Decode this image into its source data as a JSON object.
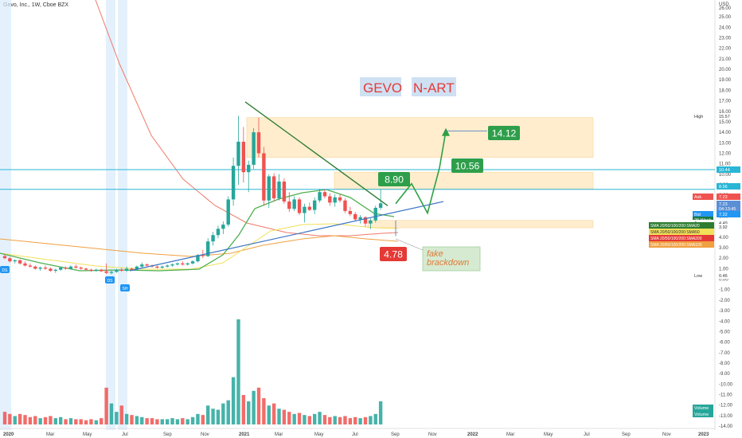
{
  "header": {
    "symbol": "Gevo, Inc., 1W, Cboe BZX"
  },
  "currency": "USD",
  "colors": {
    "up": "#26a69a",
    "down": "#ef5350",
    "trend_line": "#2f7d32",
    "support_line": "#3a74c4",
    "hline": "#29b6d6",
    "zone_fill": "#ffe0a6",
    "zone_stroke": "#f3b34a",
    "arrow": "#2ea043",
    "sma_red": "#ef7a6a",
    "sma_green": "#4caf50",
    "sma_yellow": "#f1e05a",
    "sma_orange": "#f0a040",
    "tag_green": "#2e9e4a",
    "tag_red": "#e53935",
    "title_bg": "#cfe0f3",
    "title_fg": "#e53935"
  },
  "title": {
    "ticker": "GEVO",
    "method": "N-ART"
  },
  "annotations": {
    "target_1": "14.12",
    "target_2": "10.56",
    "target_3": "8.90",
    "low_label": "4.78",
    "fake_note": "fake\nbrackdown"
  },
  "price_scale": {
    "ticks": [
      "25.00",
      "24.00",
      "23.00",
      "22.00",
      "21.00",
      "20.00",
      "19.00",
      "18.00",
      "17.00",
      "16.00",
      "15.00",
      "14.00",
      "13.00",
      "12.00",
      "11.00",
      "10.00",
      "9.00",
      "8.00",
      "7.00",
      "6.00",
      "5.00",
      "4.00",
      "3.00",
      "2.00",
      "1.00",
      "0.00",
      "-1.00",
      "-2.00",
      "-3.00",
      "-4.00",
      "-5.00",
      "-6.00",
      "-7.00",
      "-8.00",
      "-9.00",
      "-10.00",
      "-11.00",
      "-12.00",
      "-13.00",
      "-14.00"
    ],
    "top_label": "26.00",
    "labels": [
      {
        "text": "High",
        "value": "15.57",
        "color": "#ffffff",
        "bg": "#ffffff",
        "fg": "#333333"
      },
      {
        "text": "",
        "value": "10.44",
        "color": "#29b6d6",
        "bg": "#29b6d6",
        "fg": "#ffffff"
      },
      {
        "text": "",
        "value": "8.56",
        "color": "#29b6d6",
        "bg": "#29b6d6",
        "fg": "#ffffff"
      },
      {
        "text": "Ask",
        "value": "7.23",
        "color": "#ef5350",
        "bg": "#ef5350",
        "fg": "#ffffff"
      },
      {
        "text": "",
        "value": "7.23",
        "color": "#5b8fd6",
        "bg": "#5b8fd6",
        "fg": "#ffffff"
      },
      {
        "text": "",
        "value": "04:13:45",
        "color": "#5b8fd6",
        "bg": "#5b8fd6",
        "fg": "#ffffff"
      },
      {
        "text": "Bid",
        "value": "7.22",
        "color": "#2196f3",
        "bg": "#2196f3",
        "fg": "#ffffff"
      },
      {
        "text": "20 Week",
        "value": "",
        "color": "#1e7a3c",
        "bg": "#1e7a3c",
        "fg": "#ffffff"
      },
      {
        "text": "Avg",
        "value": "4.49",
        "color": "#ffffff",
        "bg": "#ffffff",
        "fg": "#333333"
      },
      {
        "text": "",
        "value": "3.92",
        "color": "#ffffff",
        "bg": "#ffffff",
        "fg": "#333333"
      },
      {
        "text": "Low",
        "value": "0.46",
        "color": "#ffffff",
        "bg": "#ffffff",
        "fg": "#333333"
      },
      {
        "text": "Volume",
        "value": "",
        "color": "#26a69a",
        "bg": "#26a69a",
        "fg": "#ffffff"
      },
      {
        "text": "Volume",
        "value": "",
        "color": "#26a69a",
        "bg": "#26a69a",
        "fg": "#ffffff"
      }
    ]
  },
  "legend": [
    {
      "text": "SMA 20/50/100/200:SMA20",
      "bg": "#2e7d32"
    },
    {
      "text": "SMA 20/50/100/200:SMA50",
      "bg": "#f1e05a"
    },
    {
      "text": "SMA 20/50/100/200:SMA200",
      "bg": "#e53935"
    },
    {
      "text": "SMA 20/50/100/200:SMA100",
      "bg": "#f0a040"
    }
  ],
  "time_axis": [
    "2020",
    "Mar",
    "May",
    "Jul",
    "Sep",
    "Nov",
    "2021",
    "Mar",
    "May",
    "Jul",
    "Sep",
    "Nov",
    "2022",
    "Mar",
    "May",
    "Jul",
    "Sep",
    "Nov",
    "2023"
  ],
  "event_flags": [
    {
      "label": "DS",
      "color": "#2196f3"
    },
    {
      "label": "DS",
      "color": "#2196f3"
    },
    {
      "label": "SH",
      "color": "#2196f3"
    }
  ],
  "chart_data": {
    "type": "candlestick",
    "symbol": "GEVO",
    "interval": "1W",
    "exchange": "Cboe BZX",
    "ylim": [
      -14,
      26
    ],
    "x_range": [
      "2020-01",
      "2023-01"
    ],
    "candles_summary": "weekly OHLC from Jan 2020 to Sep 2021",
    "candles": [
      [
        2.2,
        2.4,
        1.9,
        2.0
      ],
      [
        2.0,
        2.1,
        1.6,
        1.7
      ],
      [
        1.7,
        1.9,
        1.5,
        1.8
      ],
      [
        1.8,
        1.9,
        1.4,
        1.5
      ],
      [
        1.5,
        1.7,
        1.2,
        1.3
      ],
      [
        1.3,
        1.5,
        1.1,
        1.2
      ],
      [
        1.2,
        1.3,
        0.9,
        1.0
      ],
      [
        1.0,
        1.2,
        0.8,
        1.1
      ],
      [
        1.1,
        1.3,
        0.9,
        1.0
      ],
      [
        1.0,
        1.1,
        0.7,
        0.8
      ],
      [
        0.8,
        1.0,
        0.6,
        0.9
      ],
      [
        0.9,
        1.2,
        0.8,
        1.1
      ],
      [
        1.1,
        1.2,
        0.9,
        1.0
      ],
      [
        1.0,
        1.3,
        0.9,
        1.2
      ],
      [
        1.2,
        1.4,
        1.0,
        1.1
      ],
      [
        1.1,
        1.2,
        0.9,
        1.0
      ],
      [
        1.0,
        1.1,
        0.8,
        0.9
      ],
      [
        0.9,
        1.0,
        0.7,
        0.8
      ],
      [
        0.8,
        1.0,
        0.7,
        0.9
      ],
      [
        0.9,
        1.0,
        0.7,
        0.75
      ],
      [
        0.75,
        1.5,
        0.5,
        0.6
      ],
      [
        0.6,
        0.8,
        0.46,
        0.7
      ],
      [
        0.7,
        1.0,
        0.6,
        0.9
      ],
      [
        0.9,
        1.1,
        0.7,
        0.8
      ],
      [
        0.8,
        1.2,
        0.7,
        1.0
      ],
      [
        1.0,
        1.1,
        0.8,
        0.9
      ],
      [
        0.9,
        1.3,
        0.8,
        1.2
      ],
      [
        1.2,
        1.6,
        1.1,
        1.4
      ],
      [
        1.4,
        1.5,
        1.2,
        1.3
      ],
      [
        1.3,
        1.4,
        1.1,
        1.2
      ],
      [
        1.2,
        1.3,
        1.0,
        1.1
      ],
      [
        1.1,
        1.3,
        1.0,
        1.2
      ],
      [
        1.2,
        1.4,
        1.1,
        1.3
      ],
      [
        1.3,
        1.5,
        1.2,
        1.4
      ],
      [
        1.4,
        1.6,
        1.3,
        1.5
      ],
      [
        1.5,
        1.7,
        1.3,
        1.4
      ],
      [
        1.4,
        1.6,
        1.3,
        1.5
      ],
      [
        1.5,
        1.8,
        1.4,
        1.7
      ],
      [
        1.7,
        2.4,
        1.6,
        2.3
      ],
      [
        2.3,
        2.8,
        2.0,
        2.2
      ],
      [
        2.2,
        3.9,
        2.1,
        3.6
      ],
      [
        3.6,
        4.5,
        3.2,
        4.2
      ],
      [
        4.2,
        5.1,
        3.9,
        4.8
      ],
      [
        4.8,
        5.5,
        4.3,
        5.2
      ],
      [
        5.2,
        7.9,
        5.0,
        7.6
      ],
      [
        7.6,
        11.6,
        7.0,
        10.8
      ],
      [
        10.8,
        15.57,
        9.0,
        13.1
      ],
      [
        13.1,
        14.5,
        9.2,
        10.2
      ],
      [
        10.2,
        11.3,
        8.3,
        10.9
      ],
      [
        10.9,
        14.4,
        10.5,
        14.0
      ],
      [
        14.0,
        15.4,
        11.6,
        12.0
      ],
      [
        12.0,
        12.6,
        7.0,
        7.5
      ],
      [
        7.5,
        10.0,
        6.8,
        9.8
      ],
      [
        9.8,
        10.1,
        7.4,
        7.7
      ],
      [
        7.7,
        10.0,
        7.5,
        9.3
      ],
      [
        9.3,
        9.6,
        7.2,
        7.4
      ],
      [
        7.4,
        8.3,
        6.4,
        6.7
      ],
      [
        6.7,
        7.9,
        6.5,
        7.6
      ],
      [
        7.6,
        7.8,
        6.1,
        6.3
      ],
      [
        6.3,
        7.2,
        5.4,
        6.9
      ],
      [
        6.9,
        7.3,
        6.5,
        6.6
      ],
      [
        6.6,
        7.8,
        6.2,
        7.5
      ],
      [
        7.5,
        8.6,
        7.3,
        8.3
      ],
      [
        8.3,
        8.6,
        7.7,
        7.9
      ],
      [
        7.9,
        8.2,
        7.0,
        7.3
      ],
      [
        7.3,
        8.1,
        6.9,
        7.8
      ],
      [
        7.8,
        8.1,
        7.3,
        7.5
      ],
      [
        7.5,
        7.7,
        6.3,
        6.5
      ],
      [
        6.5,
        6.9,
        6.0,
        6.2
      ],
      [
        6.2,
        6.4,
        5.5,
        5.7
      ],
      [
        5.7,
        6.1,
        5.3,
        5.9
      ],
      [
        5.9,
        6.0,
        5.0,
        5.3
      ],
      [
        5.3,
        5.8,
        4.78,
        5.6
      ],
      [
        5.6,
        7.0,
        5.4,
        6.8
      ],
      [
        6.8,
        8.56,
        6.6,
        7.23
      ]
    ],
    "volume_relative": [
      0.12,
      0.1,
      0.08,
      0.1,
      0.09,
      0.07,
      0.08,
      0.06,
      0.07,
      0.08,
      0.06,
      0.07,
      0.05,
      0.06,
      0.05,
      0.05,
      0.04,
      0.05,
      0.04,
      0.06,
      0.35,
      0.2,
      0.12,
      0.18,
      0.1,
      0.09,
      0.08,
      0.07,
      0.06,
      0.06,
      0.05,
      0.05,
      0.05,
      0.06,
      0.05,
      0.06,
      0.05,
      0.07,
      0.1,
      0.09,
      0.18,
      0.15,
      0.14,
      0.2,
      0.23,
      0.45,
      1.0,
      0.28,
      0.22,
      0.32,
      0.35,
      0.25,
      0.18,
      0.2,
      0.15,
      0.14,
      0.12,
      0.1,
      0.11,
      0.09,
      0.08,
      0.1,
      0.12,
      0.09,
      0.07,
      0.08,
      0.07,
      0.08,
      0.06,
      0.07,
      0.06,
      0.07,
      0.08,
      0.1,
      0.22
    ],
    "levels": {
      "high": 15.57,
      "low": 0.46,
      "hline_1": 10.44,
      "hline_2": 8.56,
      "last": 7.23
    },
    "zones": [
      [
        11.6,
        15.4
      ],
      [
        8.6,
        10.2
      ],
      [
        4.9,
        5.6
      ]
    ],
    "projection_path": [
      [
        74,
        7.2
      ],
      [
        79,
        9.1
      ],
      [
        83,
        6.3
      ],
      [
        87,
        10.6
      ],
      [
        91,
        14.1
      ]
    ],
    "trend_line": [
      [
        50,
        16.9
      ],
      [
        74,
        7.0
      ]
    ],
    "support_line": [
      [
        26,
        0.8
      ],
      [
        90,
        7.4
      ]
    ]
  }
}
